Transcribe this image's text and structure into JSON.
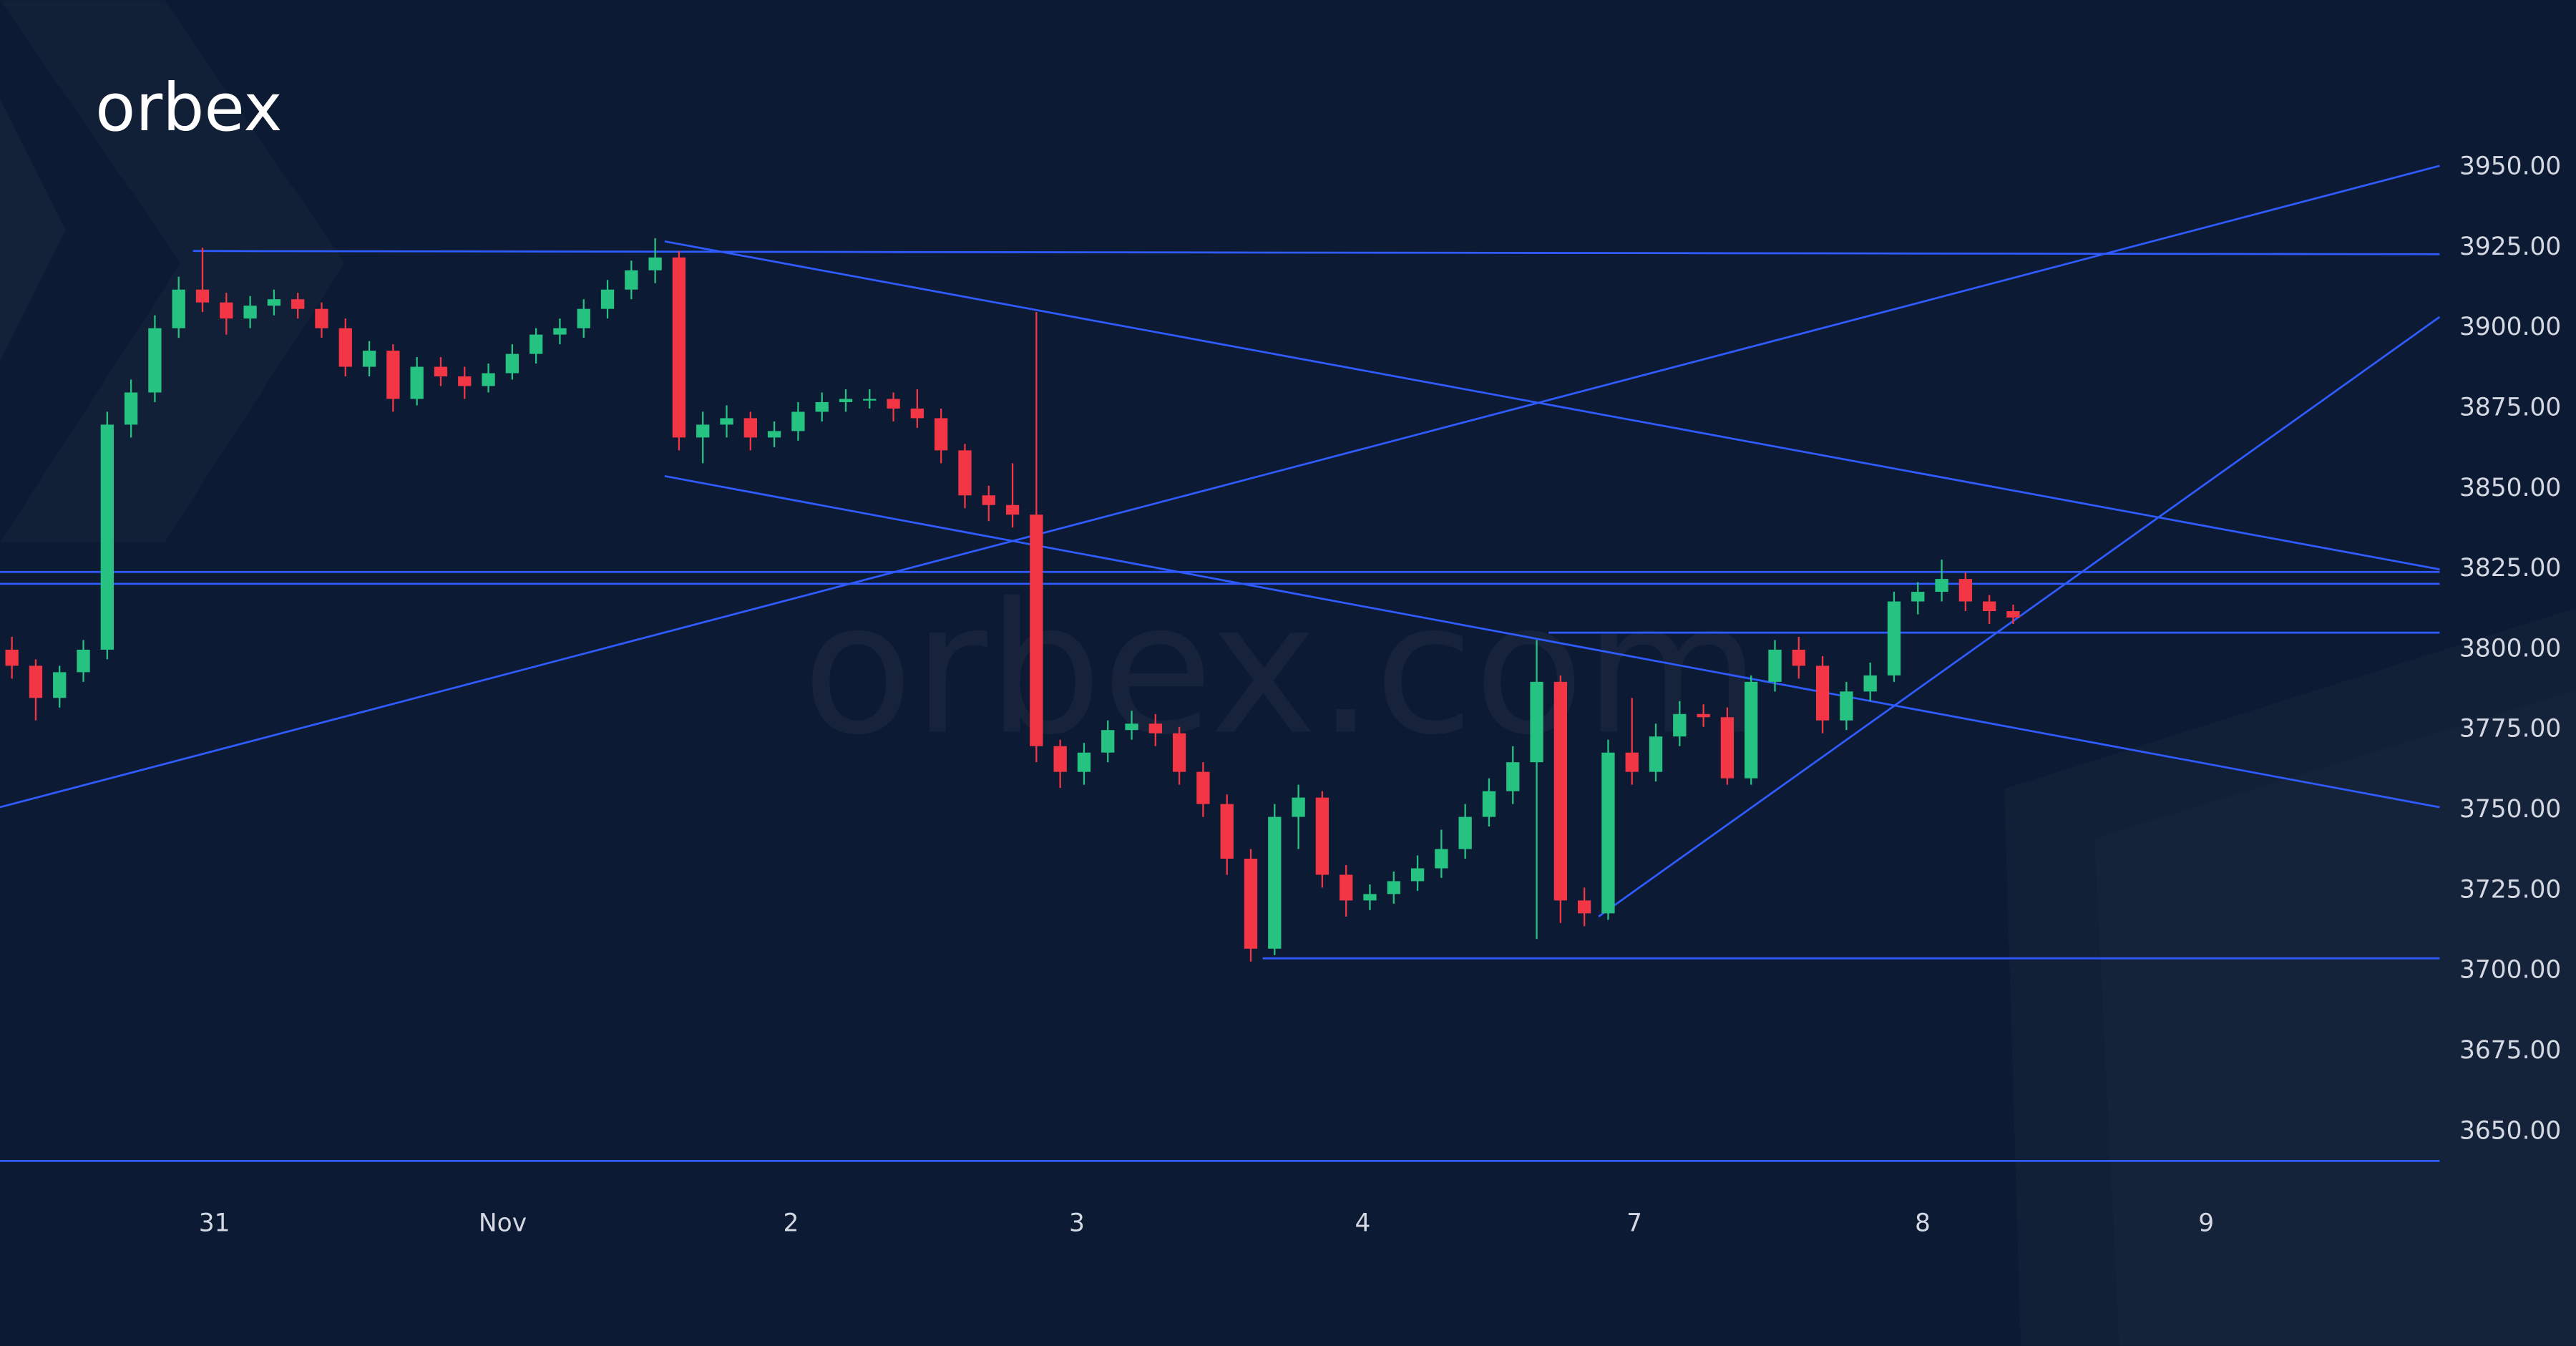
{
  "logo": "orbex",
  "watermark": "orbex.com",
  "chart_data": {
    "type": "candlestick",
    "up_color": "#26c281",
    "down_color": "#f23645",
    "line_color": "#2f5bff",
    "xlim": [
      -0.5,
      101.9
    ],
    "xticks": [
      {
        "value": 8.5,
        "label": "31"
      },
      {
        "value": 20.6,
        "label": "Nov"
      },
      {
        "value": 32.7,
        "label": "2"
      },
      {
        "value": 44.7,
        "label": "3"
      },
      {
        "value": 56.7,
        "label": "4"
      },
      {
        "value": 68.1,
        "label": "7"
      },
      {
        "value": 80.2,
        "label": "8"
      },
      {
        "value": 92.1,
        "label": "9"
      }
    ],
    "ylim": [
      3583.5,
      4002
    ],
    "yticks": [
      {
        "value": 3950,
        "label": "3950.00"
      },
      {
        "value": 3925,
        "label": "3925.00"
      },
      {
        "value": 3900,
        "label": "3900.00"
      },
      {
        "value": 3875,
        "label": "3875.00"
      },
      {
        "value": 3850,
        "label": "3850.00"
      },
      {
        "value": 3825,
        "label": "3825.00"
      },
      {
        "value": 3800,
        "label": "3800.00"
      },
      {
        "value": 3775,
        "label": "3775.00"
      },
      {
        "value": 3750,
        "label": "3750.00"
      },
      {
        "value": 3725,
        "label": "3725.00"
      },
      {
        "value": 3700,
        "label": "3700.00"
      },
      {
        "value": 3675,
        "label": "3675.00"
      },
      {
        "value": 3650,
        "label": "3650.00"
      }
    ],
    "candles": [
      [
        3800,
        3804,
        3791,
        3795
      ],
      [
        3795,
        3797,
        3778,
        3785
      ],
      [
        3785,
        3795,
        3782,
        3793
      ],
      [
        3793,
        3803,
        3790,
        3800
      ],
      [
        3800,
        3874,
        3797,
        3870
      ],
      [
        3870,
        3884,
        3866,
        3880
      ],
      [
        3880,
        3904,
        3877,
        3900
      ],
      [
        3900,
        3916,
        3897,
        3912
      ],
      [
        3912,
        3925,
        3905,
        3908
      ],
      [
        3908,
        3911,
        3898,
        3903
      ],
      [
        3903,
        3910,
        3900,
        3907
      ],
      [
        3907,
        3912,
        3904,
        3909
      ],
      [
        3909,
        3911,
        3903,
        3906
      ],
      [
        3906,
        3908,
        3897,
        3900
      ],
      [
        3900,
        3903,
        3885,
        3888
      ],
      [
        3888,
        3896,
        3885,
        3893
      ],
      [
        3893,
        3895,
        3874,
        3878
      ],
      [
        3878,
        3891,
        3876,
        3888
      ],
      [
        3888,
        3891,
        3882,
        3885
      ],
      [
        3885,
        3888,
        3878,
        3882
      ],
      [
        3882,
        3889,
        3880,
        3886
      ],
      [
        3886,
        3895,
        3884,
        3892
      ],
      [
        3892,
        3900,
        3889,
        3898
      ],
      [
        3898,
        3903,
        3895,
        3900
      ],
      [
        3900,
        3909,
        3897,
        3906
      ],
      [
        3906,
        3915,
        3903,
        3912
      ],
      [
        3912,
        3921,
        3909,
        3918
      ],
      [
        3918,
        3928,
        3914,
        3922
      ],
      [
        3922,
        3924,
        3862,
        3866
      ],
      [
        3866,
        3874,
        3858,
        3870
      ],
      [
        3870,
        3876,
        3866,
        3872
      ],
      [
        3872,
        3874,
        3862,
        3866
      ],
      [
        3866,
        3871,
        3863,
        3868
      ],
      [
        3868,
        3877,
        3865,
        3874
      ],
      [
        3874,
        3880,
        3871,
        3877
      ],
      [
        3877,
        3881,
        3874,
        3878
      ],
      [
        3878,
        3881,
        3875,
        3878
      ],
      [
        3878,
        3880,
        3871,
        3875
      ],
      [
        3875,
        3881,
        3869,
        3872
      ],
      [
        3872,
        3875,
        3858,
        3862
      ],
      [
        3862,
        3864,
        3844,
        3848
      ],
      [
        3848,
        3851,
        3840,
        3845
      ],
      [
        3845,
        3858,
        3838,
        3842
      ],
      [
        3842,
        3905,
        3765,
        3770
      ],
      [
        3770,
        3772,
        3757,
        3762
      ],
      [
        3762,
        3771,
        3758,
        3768
      ],
      [
        3768,
        3778,
        3765,
        3775
      ],
      [
        3775,
        3781,
        3772,
        3777
      ],
      [
        3777,
        3780,
        3770,
        3774
      ],
      [
        3774,
        3776,
        3758,
        3762
      ],
      [
        3762,
        3765,
        3748,
        3752
      ],
      [
        3752,
        3755,
        3730,
        3735
      ],
      [
        3735,
        3738,
        3703,
        3707
      ],
      [
        3707,
        3752,
        3705,
        3748
      ],
      [
        3748,
        3758,
        3738,
        3754
      ],
      [
        3754,
        3756,
        3726,
        3730
      ],
      [
        3730,
        3733,
        3717,
        3722
      ],
      [
        3722,
        3727,
        3719,
        3724
      ],
      [
        3724,
        3731,
        3721,
        3728
      ],
      [
        3728,
        3736,
        3725,
        3732
      ],
      [
        3732,
        3744,
        3729,
        3738
      ],
      [
        3738,
        3752,
        3735,
        3748
      ],
      [
        3748,
        3760,
        3745,
        3756
      ],
      [
        3756,
        3770,
        3752,
        3765
      ],
      [
        3765,
        3803,
        3710,
        3790
      ],
      [
        3790,
        3792,
        3715,
        3722
      ],
      [
        3722,
        3726,
        3714,
        3718
      ],
      [
        3718,
        3772,
        3716,
        3768
      ],
      [
        3768,
        3785,
        3758,
        3762
      ],
      [
        3762,
        3777,
        3759,
        3773
      ],
      [
        3773,
        3784,
        3770,
        3780
      ],
      [
        3780,
        3783,
        3776,
        3779
      ],
      [
        3779,
        3782,
        3758,
        3760
      ],
      [
        3760,
        3792,
        3758,
        3790
      ],
      [
        3790,
        3803,
        3787,
        3800
      ],
      [
        3800,
        3804,
        3791,
        3795
      ],
      [
        3795,
        3798,
        3774,
        3778
      ],
      [
        3778,
        3790,
        3775,
        3787
      ],
      [
        3787,
        3796,
        3784,
        3792
      ],
      [
        3792,
        3818,
        3790,
        3815
      ],
      [
        3815,
        3821,
        3811,
        3818
      ],
      [
        3818,
        3828,
        3815,
        3822
      ],
      [
        3822,
        3824,
        3812,
        3815
      ],
      [
        3815,
        3817,
        3808,
        3812
      ],
      [
        3812,
        3814,
        3808,
        3810
      ]
    ],
    "trendlines": [
      {
        "x": [
          -0.5,
          101.9
        ],
        "y": [
          3824.2,
          3824.2
        ]
      },
      {
        "x": [
          -0.5,
          101.9
        ],
        "y": [
          3820.5,
          3820.5
        ]
      },
      {
        "x": [
          7.6,
          101.9
        ],
        "y": [
          3924,
          3923
        ]
      },
      {
        "x": [
          64.5,
          101.9
        ],
        "y": [
          3805.3,
          3805.3
        ]
      },
      {
        "x": [
          52.5,
          101.9
        ],
        "y": [
          3704,
          3704
        ]
      },
      {
        "x": [
          -0.5,
          101.9
        ],
        "y": [
          3641,
          3641
        ]
      },
      {
        "x": [
          -0.5,
          101.9
        ],
        "y": [
          3751,
          3950.5
        ]
      },
      {
        "x": [
          27.4,
          101.9
        ],
        "y": [
          3927,
          3825
        ]
      },
      {
        "x": [
          27.4,
          101.9
        ],
        "y": [
          3854,
          3751
        ]
      },
      {
        "x": [
          66.6,
          101.9
        ],
        "y": [
          3717,
          3903.5
        ]
      }
    ]
  }
}
